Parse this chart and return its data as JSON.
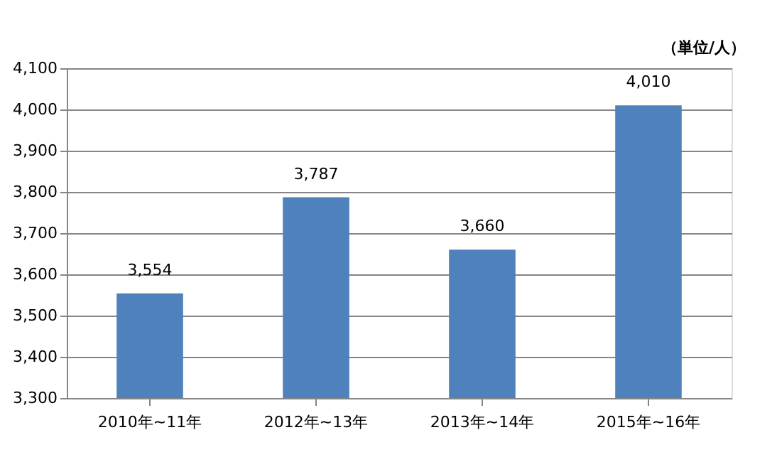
{
  "chart_data": {
    "type": "bar",
    "categories": [
      "2010年~11年",
      "2012年~13年",
      "2013年~14年",
      "2015年~16年"
    ],
    "values": [
      3554,
      3787,
      3660,
      4010
    ],
    "value_labels": [
      "3,554",
      "3,787",
      "3,660",
      "4,010"
    ],
    "color": "#4f81bd",
    "ylim": [
      3300,
      4100
    ],
    "yticks": [
      {
        "value": 3300,
        "label": "3,300"
      },
      {
        "value": 3400,
        "label": "3,400"
      },
      {
        "value": 3500,
        "label": "3,500"
      },
      {
        "value": 3600,
        "label": "3,600"
      },
      {
        "value": 3700,
        "label": "3,700"
      },
      {
        "value": 3800,
        "label": "3,800"
      },
      {
        "value": 3900,
        "label": "3,900"
      },
      {
        "value": 4000,
        "label": "4,000"
      },
      {
        "value": 4100,
        "label": "4,100"
      }
    ],
    "grid": "y",
    "annotations": [
      "（単位/人）"
    ]
  }
}
